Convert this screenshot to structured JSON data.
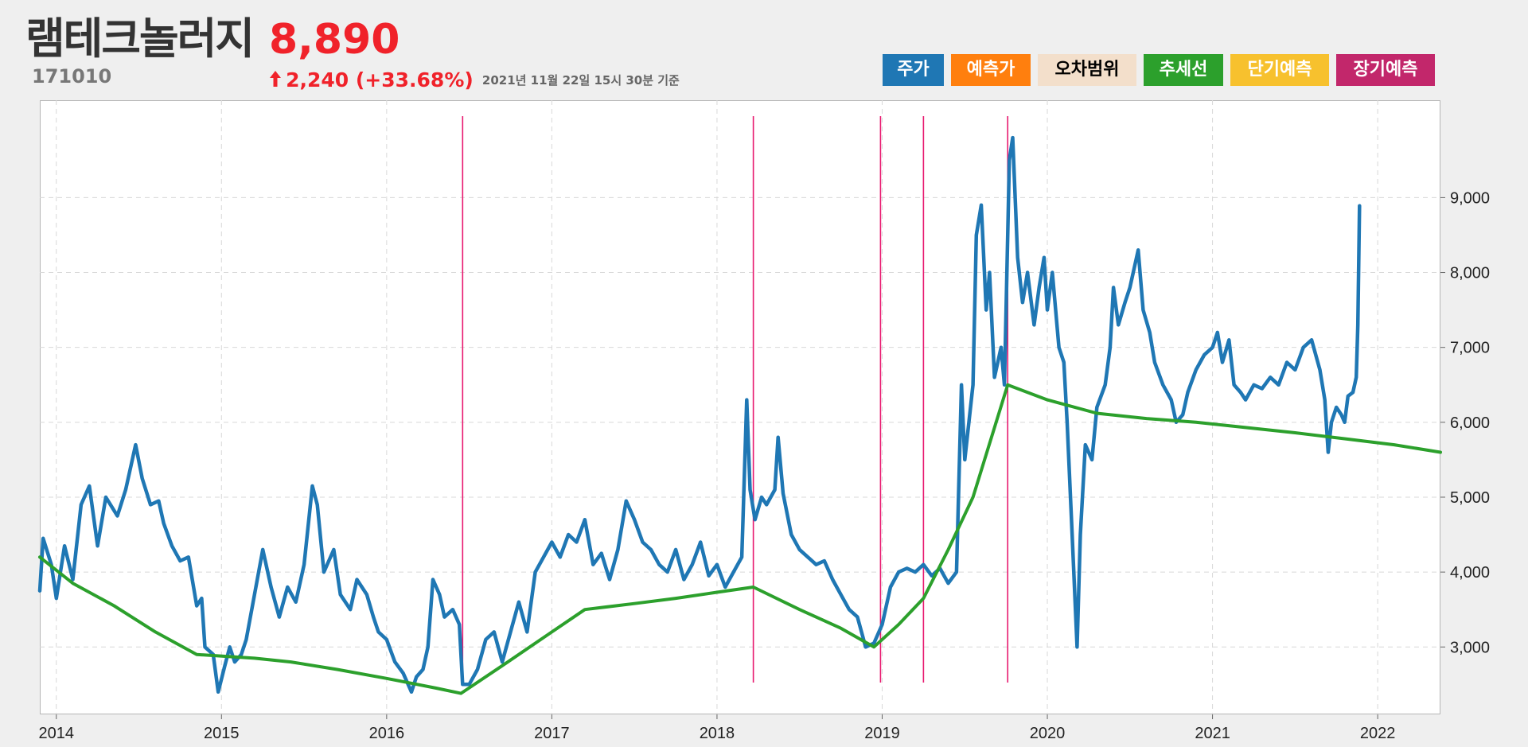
{
  "header": {
    "stock_name": "램테크놀러지",
    "stock_code": "171010",
    "price": "8,890",
    "change": "2,240 (+33.68%)",
    "as_of": "2021년 11월 22일 15시 30분 기준"
  },
  "legend": [
    {
      "label": "주가",
      "color": "#1f77b4",
      "text_color": "#ffffff"
    },
    {
      "label": "예측가",
      "color": "#ff7f0e",
      "text_color": "#ffffff"
    },
    {
      "label": "오차범위",
      "color": "#f3dfcb",
      "text_color": "#000000"
    },
    {
      "label": "추세선",
      "color": "#2ca02c",
      "text_color": "#ffffff"
    },
    {
      "label": "단기예측",
      "color": "#f7c12e",
      "text_color": "#ffffff"
    },
    {
      "label": "장기예측",
      "color": "#c2276b",
      "text_color": "#ffffff"
    }
  ],
  "colors": {
    "price_up": "#f0222a",
    "price_line": "#1f77b4",
    "trend_line": "#2ca02c",
    "event_line": "#e8196f"
  },
  "chart_data": {
    "type": "line",
    "x_range": [
      2013.9,
      2022.38
    ],
    "y_range": [
      2100,
      10300
    ],
    "x_ticks": [
      {
        "value": 2014,
        "label": "2014"
      },
      {
        "value": 2015,
        "label": "2015"
      },
      {
        "value": 2016,
        "label": "2016"
      },
      {
        "value": 2017,
        "label": "2017"
      },
      {
        "value": 2018,
        "label": "2018"
      },
      {
        "value": 2019,
        "label": "2019"
      },
      {
        "value": 2020,
        "label": "2020"
      },
      {
        "value": 2021,
        "label": "2021"
      },
      {
        "value": 2022,
        "label": "2022"
      }
    ],
    "y_ticks": [
      {
        "value": 3000,
        "label": "3,000"
      },
      {
        "value": 4000,
        "label": "4,000"
      },
      {
        "value": 5000,
        "label": "5,000"
      },
      {
        "value": 6000,
        "label": "6,000"
      },
      {
        "value": 7000,
        "label": "7,000"
      },
      {
        "value": 8000,
        "label": "8,000"
      },
      {
        "value": 9000,
        "label": "9,000"
      }
    ],
    "grid": true,
    "y_axis_position": "right",
    "series": [
      {
        "name": "주가",
        "points": [
          [
            2013.9,
            3750
          ],
          [
            2013.92,
            4450
          ],
          [
            2013.97,
            4100
          ],
          [
            2014.0,
            3650
          ],
          [
            2014.05,
            4350
          ],
          [
            2014.1,
            3900
          ],
          [
            2014.15,
            4900
          ],
          [
            2014.2,
            5150
          ],
          [
            2014.25,
            4350
          ],
          [
            2014.3,
            5000
          ],
          [
            2014.37,
            4750
          ],
          [
            2014.42,
            5100
          ],
          [
            2014.48,
            5700
          ],
          [
            2014.52,
            5250
          ],
          [
            2014.57,
            4900
          ],
          [
            2014.62,
            4950
          ],
          [
            2014.65,
            4650
          ],
          [
            2014.7,
            4350
          ],
          [
            2014.75,
            4150
          ],
          [
            2014.8,
            4200
          ],
          [
            2014.85,
            3550
          ],
          [
            2014.88,
            3650
          ],
          [
            2014.9,
            3000
          ],
          [
            2014.95,
            2900
          ],
          [
            2014.98,
            2400
          ],
          [
            2015.02,
            2750
          ],
          [
            2015.05,
            3000
          ],
          [
            2015.08,
            2800
          ],
          [
            2015.12,
            2900
          ],
          [
            2015.15,
            3100
          ],
          [
            2015.2,
            3700
          ],
          [
            2015.25,
            4300
          ],
          [
            2015.3,
            3800
          ],
          [
            2015.35,
            3400
          ],
          [
            2015.4,
            3800
          ],
          [
            2015.45,
            3600
          ],
          [
            2015.5,
            4100
          ],
          [
            2015.55,
            5150
          ],
          [
            2015.58,
            4900
          ],
          [
            2015.62,
            4000
          ],
          [
            2015.68,
            4300
          ],
          [
            2015.72,
            3700
          ],
          [
            2015.78,
            3500
          ],
          [
            2015.82,
            3900
          ],
          [
            2015.88,
            3700
          ],
          [
            2015.92,
            3400
          ],
          [
            2015.95,
            3200
          ],
          [
            2016.0,
            3100
          ],
          [
            2016.05,
            2800
          ],
          [
            2016.1,
            2650
          ],
          [
            2016.15,
            2400
          ],
          [
            2016.18,
            2600
          ],
          [
            2016.22,
            2700
          ],
          [
            2016.25,
            3000
          ],
          [
            2016.28,
            3900
          ],
          [
            2016.32,
            3700
          ],
          [
            2016.35,
            3400
          ],
          [
            2016.4,
            3500
          ],
          [
            2016.44,
            3300
          ],
          [
            2016.46,
            2500
          ],
          [
            2016.5,
            2500
          ],
          [
            2016.55,
            2700
          ],
          [
            2016.6,
            3100
          ],
          [
            2016.65,
            3200
          ],
          [
            2016.7,
            2800
          ],
          [
            2016.75,
            3200
          ],
          [
            2016.8,
            3600
          ],
          [
            2016.85,
            3200
          ],
          [
            2016.9,
            4000
          ],
          [
            2016.95,
            4200
          ],
          [
            2017.0,
            4400
          ],
          [
            2017.05,
            4200
          ],
          [
            2017.1,
            4500
          ],
          [
            2017.15,
            4400
          ],
          [
            2017.2,
            4700
          ],
          [
            2017.25,
            4100
          ],
          [
            2017.3,
            4250
          ],
          [
            2017.35,
            3900
          ],
          [
            2017.4,
            4300
          ],
          [
            2017.45,
            4950
          ],
          [
            2017.5,
            4700
          ],
          [
            2017.55,
            4400
          ],
          [
            2017.6,
            4300
          ],
          [
            2017.65,
            4100
          ],
          [
            2017.7,
            4000
          ],
          [
            2017.75,
            4300
          ],
          [
            2017.8,
            3900
          ],
          [
            2017.85,
            4100
          ],
          [
            2017.9,
            4400
          ],
          [
            2017.95,
            3950
          ],
          [
            2018.0,
            4100
          ],
          [
            2018.05,
            3800
          ],
          [
            2018.1,
            4000
          ],
          [
            2018.15,
            4200
          ],
          [
            2018.18,
            6300
          ],
          [
            2018.2,
            5100
          ],
          [
            2018.23,
            4700
          ],
          [
            2018.27,
            5000
          ],
          [
            2018.3,
            4900
          ],
          [
            2018.35,
            5100
          ],
          [
            2018.37,
            5800
          ],
          [
            2018.4,
            5050
          ],
          [
            2018.45,
            4500
          ],
          [
            2018.5,
            4300
          ],
          [
            2018.55,
            4200
          ],
          [
            2018.6,
            4100
          ],
          [
            2018.65,
            4150
          ],
          [
            2018.7,
            3900
          ],
          [
            2018.75,
            3700
          ],
          [
            2018.8,
            3500
          ],
          [
            2018.85,
            3400
          ],
          [
            2018.9,
            3000
          ],
          [
            2018.95,
            3050
          ],
          [
            2019.0,
            3300
          ],
          [
            2019.05,
            3800
          ],
          [
            2019.1,
            4000
          ],
          [
            2019.15,
            4050
          ],
          [
            2019.2,
            4000
          ],
          [
            2019.25,
            4100
          ],
          [
            2019.3,
            3950
          ],
          [
            2019.35,
            4050
          ],
          [
            2019.4,
            3850
          ],
          [
            2019.45,
            4000
          ],
          [
            2019.48,
            6500
          ],
          [
            2019.5,
            5500
          ],
          [
            2019.55,
            6500
          ],
          [
            2019.57,
            8500
          ],
          [
            2019.6,
            8900
          ],
          [
            2019.63,
            7500
          ],
          [
            2019.65,
            8000
          ],
          [
            2019.68,
            6600
          ],
          [
            2019.72,
            7000
          ],
          [
            2019.74,
            6500
          ],
          [
            2019.77,
            9500
          ],
          [
            2019.79,
            9800
          ],
          [
            2019.82,
            8200
          ],
          [
            2019.85,
            7600
          ],
          [
            2019.88,
            8000
          ],
          [
            2019.92,
            7300
          ],
          [
            2019.95,
            7800
          ],
          [
            2019.98,
            8200
          ],
          [
            2020.0,
            7500
          ],
          [
            2020.03,
            8000
          ],
          [
            2020.07,
            7000
          ],
          [
            2020.1,
            6800
          ],
          [
            2020.12,
            6000
          ],
          [
            2020.15,
            4500
          ],
          [
            2020.18,
            3000
          ],
          [
            2020.2,
            4500
          ],
          [
            2020.23,
            5700
          ],
          [
            2020.27,
            5500
          ],
          [
            2020.3,
            6200
          ],
          [
            2020.35,
            6500
          ],
          [
            2020.38,
            7000
          ],
          [
            2020.4,
            7800
          ],
          [
            2020.43,
            7300
          ],
          [
            2020.47,
            7600
          ],
          [
            2020.5,
            7800
          ],
          [
            2020.55,
            8300
          ],
          [
            2020.58,
            7500
          ],
          [
            2020.62,
            7200
          ],
          [
            2020.65,
            6800
          ],
          [
            2020.7,
            6500
          ],
          [
            2020.75,
            6300
          ],
          [
            2020.78,
            6000
          ],
          [
            2020.82,
            6100
          ],
          [
            2020.85,
            6400
          ],
          [
            2020.9,
            6700
          ],
          [
            2020.95,
            6900
          ],
          [
            2021.0,
            7000
          ],
          [
            2021.03,
            7200
          ],
          [
            2021.06,
            6800
          ],
          [
            2021.1,
            7100
          ],
          [
            2021.13,
            6500
          ],
          [
            2021.17,
            6400
          ],
          [
            2021.2,
            6300
          ],
          [
            2021.25,
            6500
          ],
          [
            2021.3,
            6450
          ],
          [
            2021.35,
            6600
          ],
          [
            2021.4,
            6500
          ],
          [
            2021.45,
            6800
          ],
          [
            2021.5,
            6700
          ],
          [
            2021.55,
            7000
          ],
          [
            2021.6,
            7100
          ],
          [
            2021.65,
            6700
          ],
          [
            2021.68,
            6300
          ],
          [
            2021.7,
            5600
          ],
          [
            2021.72,
            6000
          ],
          [
            2021.75,
            6200
          ],
          [
            2021.78,
            6100
          ],
          [
            2021.8,
            6000
          ],
          [
            2021.82,
            6350
          ],
          [
            2021.85,
            6400
          ],
          [
            2021.87,
            6600
          ],
          [
            2021.88,
            7300
          ],
          [
            2021.89,
            8890
          ]
        ]
      },
      {
        "name": "추세선",
        "points": [
          [
            2013.9,
            4200
          ],
          [
            2014.1,
            3850
          ],
          [
            2014.35,
            3550
          ],
          [
            2014.6,
            3200
          ],
          [
            2014.85,
            2900
          ],
          [
            2015.2,
            2850
          ],
          [
            2015.42,
            2800
          ],
          [
            2015.7,
            2700
          ],
          [
            2016.0,
            2580
          ],
          [
            2016.3,
            2450
          ],
          [
            2016.45,
            2380
          ],
          [
            2016.7,
            2750
          ],
          [
            2017.0,
            3200
          ],
          [
            2017.2,
            3500
          ],
          [
            2017.5,
            3580
          ],
          [
            2017.75,
            3650
          ],
          [
            2018.0,
            3730
          ],
          [
            2018.22,
            3800
          ],
          [
            2018.5,
            3500
          ],
          [
            2018.75,
            3250
          ],
          [
            2018.95,
            3000
          ],
          [
            2019.1,
            3300
          ],
          [
            2019.25,
            3650
          ],
          [
            2019.4,
            4300
          ],
          [
            2019.55,
            5000
          ],
          [
            2019.76,
            6500
          ],
          [
            2020.0,
            6300
          ],
          [
            2020.3,
            6120
          ],
          [
            2020.6,
            6050
          ],
          [
            2020.9,
            6000
          ],
          [
            2021.2,
            5930
          ],
          [
            2021.5,
            5860
          ],
          [
            2021.8,
            5780
          ],
          [
            2022.1,
            5700
          ],
          [
            2022.38,
            5600
          ]
        ]
      }
    ],
    "vertical_markers": [
      2016.46,
      2018.22,
      2018.99,
      2019.25,
      2019.76
    ]
  }
}
